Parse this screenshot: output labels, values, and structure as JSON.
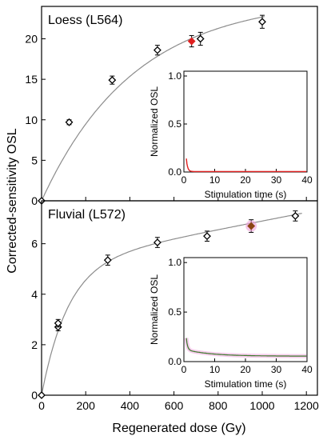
{
  "colors": {
    "fit_curve": "#8c8c8c",
    "loess_highlight": "#e02020",
    "fluvial_highlight": "#8b4513",
    "fluvial_highlight_glow": "#f0a0d8",
    "loess_decay": "#e02020",
    "fluvial_decay": "#3a7a2a",
    "fluvial_decay_glow": "#f3b8e6",
    "marker_stroke": "#000000"
  },
  "chart_data": [
    {
      "type": "scatter",
      "panel": "top",
      "title": "Loess (L564)",
      "xlim": [
        0,
        1250
      ],
      "ylim": [
        0,
        24
      ],
      "yticks": [
        0,
        5,
        10,
        15,
        20
      ],
      "ytick_labels": [
        "0",
        "5",
        "10",
        "15",
        "20"
      ],
      "marker": "open-diamond",
      "points": [
        {
          "x": 0,
          "y": 0,
          "err": 0
        },
        {
          "x": 125,
          "y": 9.7,
          "err": 0.3
        },
        {
          "x": 320,
          "y": 14.9,
          "err": 0.5
        },
        {
          "x": 525,
          "y": 18.6,
          "err": 0.6
        },
        {
          "x": 680,
          "y": 19.7,
          "err": 0.7,
          "highlight": true
        },
        {
          "x": 720,
          "y": 20.0,
          "err": 0.8
        },
        {
          "x": 1000,
          "y": 22.1,
          "err": 0.8
        }
      ],
      "fit": {
        "form": "saturating-exponential",
        "a": 25,
        "d0": 420
      },
      "inset": {
        "type": "line",
        "xlabel": "Stimulation time (s)",
        "ylabel": "Normalized OSL",
        "xlim": [
          0,
          40
        ],
        "ylim": [
          0,
          1.05
        ],
        "xticks": [
          0,
          10,
          20,
          30,
          40
        ],
        "xtick_labels": [
          "0",
          "10",
          "20",
          "30",
          "40"
        ],
        "yticks": [
          0,
          0.5,
          1.0
        ],
        "ytick_labels": [
          "0.0",
          "0.5",
          "1.0"
        ],
        "curve": {
          "form": "exponential-decay",
          "start": 1.0,
          "rate": 2.5,
          "background": 0.005
        }
      }
    },
    {
      "type": "scatter",
      "panel": "bottom",
      "title": "Fluvial (L572)",
      "xlim": [
        0,
        1250
      ],
      "ylim": [
        0,
        7.7
      ],
      "yticks": [
        0,
        2,
        4,
        6
      ],
      "ytick_labels": [
        "0",
        "2",
        "4",
        "6"
      ],
      "xticks": [
        0,
        200,
        400,
        600,
        800,
        1000,
        1200
      ],
      "xtick_labels": [
        "0",
        "200",
        "400",
        "600",
        "800",
        "1000",
        "1200"
      ],
      "xlabel": "Regenerated dose (Gy)",
      "marker": "open-diamond",
      "points": [
        {
          "x": 0,
          "y": 0,
          "err": 0
        },
        {
          "x": 75,
          "y": 2.7,
          "err": 0.15
        },
        {
          "x": 75,
          "y": 2.85,
          "err": 0.15
        },
        {
          "x": 300,
          "y": 5.35,
          "err": 0.2
        },
        {
          "x": 525,
          "y": 6.05,
          "err": 0.2
        },
        {
          "x": 750,
          "y": 6.3,
          "err": 0.2
        },
        {
          "x": 950,
          "y": 6.7,
          "err": 0.25,
          "highlight": true
        },
        {
          "x": 1150,
          "y": 7.1,
          "err": 0.2
        }
      ],
      "fit": {
        "form": "saturating-exponential-plus-linear",
        "a": 5.2,
        "d0": 120,
        "slope": 0.0017
      },
      "inset": {
        "type": "line",
        "xlabel": "Stimulation time (s)",
        "ylabel": "Normalized OSL",
        "xlim": [
          0,
          40
        ],
        "ylim": [
          0,
          1.05
        ],
        "xticks": [
          0,
          10,
          20,
          30,
          40
        ],
        "xtick_labels": [
          "0",
          "10",
          "20",
          "30",
          "40"
        ],
        "yticks": [
          0,
          0.5,
          1.0
        ],
        "ytick_labels": [
          "0.0",
          "0.5",
          "1.0"
        ],
        "curve": {
          "form": "decay-with-slow-tail",
          "fast": 0.88,
          "fast_rate": 2.5,
          "slow": 0.07,
          "slow_rate": 0.12,
          "background": 0.055
        }
      }
    }
  ],
  "shared": {
    "ylabel": "Corrected-sensitivity OSL"
  }
}
